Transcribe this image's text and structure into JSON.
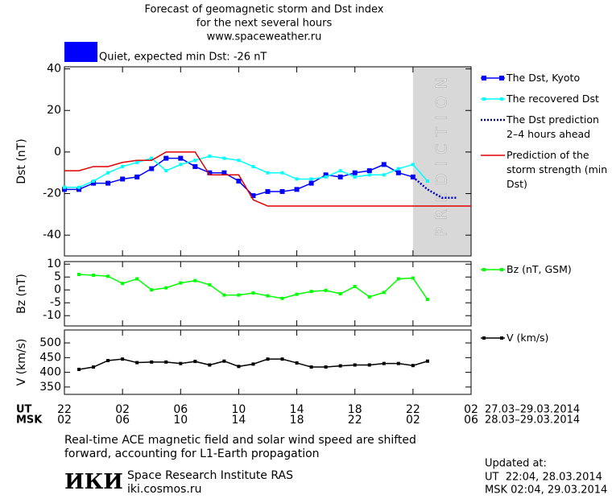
{
  "header": {
    "title_lines": [
      "Forecast of geomagnetic storm and Dst index",
      "for the next several hours",
      "www.spaceweather.ru"
    ],
    "status": "Quiet, expected min Dst: -26 nT",
    "status_color": "#0000ff"
  },
  "chart_data": [
    {
      "type": "line",
      "y_label": "Dst (nT)",
      "xlim": [
        0,
        28
      ],
      "ylim": [
        -50,
        41
      ],
      "yticks": [
        -40,
        -20,
        0,
        20,
        40
      ],
      "grid": false,
      "prediction": {
        "start": 24,
        "label": "PREDICTION"
      },
      "series": [
        {
          "name": "The Dst, Kyoto",
          "color": "#0000ff",
          "marker": "square",
          "marker_size": 6,
          "x": [
            0,
            1,
            2,
            3,
            4,
            5,
            6,
            7,
            8,
            9,
            10,
            11,
            12,
            13,
            14,
            15,
            16,
            17,
            18,
            19,
            20,
            21,
            22,
            23,
            24
          ],
          "values": [
            -18,
            -18,
            -15,
            -15,
            -13,
            -12,
            -8,
            -3,
            -3,
            -7,
            -10,
            -10,
            -14,
            -21,
            -19,
            -19,
            -18,
            -15,
            -11,
            -12,
            -10,
            -9,
            -6,
            -10,
            -12
          ]
        },
        {
          "name": "The recovered Dst",
          "color": "#00ffff",
          "marker": "square",
          "marker_size": 4,
          "x": [
            0,
            1,
            2,
            3,
            4,
            5,
            6,
            7,
            8,
            9,
            10,
            11,
            12,
            13,
            14,
            15,
            16,
            17,
            18,
            19,
            20,
            21,
            22,
            23,
            24,
            25
          ],
          "values": [
            -17,
            -17,
            -14,
            -10,
            -7,
            -5,
            -3,
            -9,
            -6,
            -4,
            -2,
            -3,
            -4,
            -7,
            -10,
            -10,
            -13,
            -13,
            -12,
            -9,
            -12,
            -11,
            -11,
            -8,
            -6,
            -14
          ]
        },
        {
          "name": "The Dst prediction 2–4 hours ahead",
          "color": "#0000c0",
          "dash": "dotted",
          "x": [
            24,
            25,
            26,
            27
          ],
          "values": [
            -12,
            -18,
            -22,
            -22
          ]
        },
        {
          "name": "Prediction of the storm strength (min Dst)",
          "color": "#e00000",
          "x": [
            0,
            1,
            2,
            3,
            4,
            5,
            6,
            7,
            8,
            9,
            10,
            11,
            12,
            13,
            14,
            15,
            16,
            17,
            18,
            19,
            20,
            21,
            22,
            23,
            24,
            25,
            26,
            27,
            28
          ],
          "values": [
            -9,
            -9,
            -7,
            -7,
            -5,
            -4,
            -4,
            0,
            0,
            0,
            -11,
            -11,
            -11,
            -23,
            -26,
            -26,
            -26,
            -26,
            -26,
            -26,
            -26,
            -26,
            -26,
            -26,
            -26,
            -26,
            -26,
            -26,
            -26
          ]
        }
      ]
    },
    {
      "type": "line",
      "y_label": "Bz (nT)",
      "xlim": [
        0,
        28
      ],
      "ylim": [
        -14,
        11
      ],
      "yticks": [
        -10,
        -5,
        0,
        5,
        10
      ],
      "grid": false,
      "series": [
        {
          "name": "Bz (nT, GSM)",
          "color": "#00ff00",
          "marker": "square",
          "marker_size": 4,
          "x": [
            1,
            2,
            3,
            4,
            5,
            6,
            7,
            8,
            9,
            10,
            11,
            12,
            13,
            14,
            15,
            16,
            17,
            18,
            19,
            20,
            21,
            22,
            23,
            24,
            25
          ],
          "values": [
            6,
            5.7,
            5.3,
            2.5,
            4.3,
            0,
            0.8,
            2.7,
            3.6,
            2,
            -2,
            -2,
            -1.2,
            -2.3,
            -3.3,
            -1.7,
            -0.6,
            -0.2,
            -1.5,
            1.3,
            -2.7,
            -1,
            4.3,
            4.6,
            -3.7
          ]
        }
      ]
    },
    {
      "type": "line",
      "y_label": "V (km/s)",
      "xlim": [
        0,
        28
      ],
      "ylim": [
        325,
        544
      ],
      "yticks": [
        350,
        400,
        450,
        500
      ],
      "grid": false,
      "series": [
        {
          "name": "V (km/s)",
          "color": "#000000",
          "marker": "square",
          "marker_size": 4,
          "x": [
            1,
            2,
            3,
            4,
            5,
            6,
            7,
            8,
            9,
            10,
            11,
            12,
            13,
            14,
            15,
            16,
            17,
            18,
            19,
            20,
            21,
            22,
            23,
            24,
            25
          ],
          "values": [
            410,
            418,
            440,
            445,
            433,
            435,
            435,
            430,
            437,
            425,
            438,
            420,
            428,
            445,
            445,
            432,
            418,
            418,
            422,
            425,
            425,
            430,
            430,
            423,
            438
          ]
        }
      ],
      "x_row_labels": [
        "UT",
        "MSK"
      ],
      "xticks": [
        {
          "value": 0,
          "label": "22"
        },
        {
          "value": 4,
          "label": "02"
        },
        {
          "value": 8,
          "label": "06"
        },
        {
          "value": 12,
          "label": "10"
        },
        {
          "value": 16,
          "label": "14"
        },
        {
          "value": 20,
          "label": "18"
        },
        {
          "value": 24,
          "label": "22"
        },
        {
          "value": 28,
          "label": "02"
        }
      ],
      "xticks_msk": [
        {
          "value": 0,
          "label": "02"
        },
        {
          "value": 4,
          "label": "06"
        },
        {
          "value": 8,
          "label": "10"
        },
        {
          "value": 12,
          "label": "14"
        },
        {
          "value": 16,
          "label": "18"
        },
        {
          "value": 20,
          "label": "22"
        },
        {
          "value": 24,
          "label": "02"
        },
        {
          "value": 28,
          "label": "06"
        }
      ],
      "x_dates": [
        "27.03–29.03.2014",
        "28.03–29.03.2014"
      ]
    }
  ],
  "footer": {
    "note": "Real-time ACE magnetic field and solar wind speed are shifted forward, accounting for L1-Earth propagation",
    "logo": "ИКИ",
    "institute": "Space Research Institute RAS",
    "url": "iki.cosmos.ru",
    "updated": [
      "Updated at:",
      "UT  22:04, 28.03.2014",
      "MSK 02:04, 29.03.2014"
    ]
  }
}
